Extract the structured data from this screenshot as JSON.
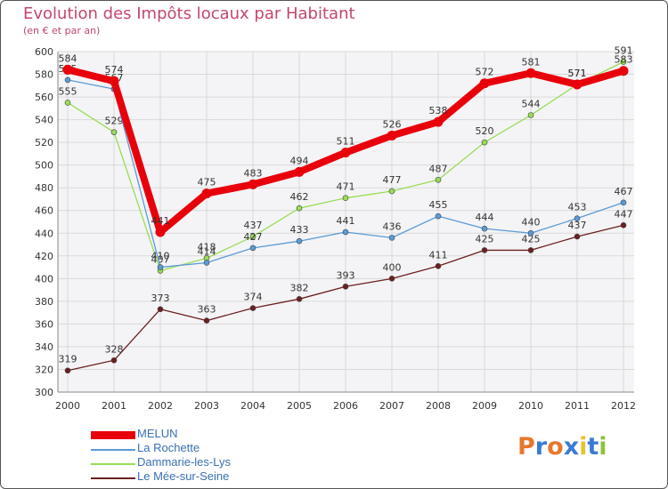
{
  "header": {
    "title": "Evolution des Impôts locaux par Habitant",
    "subtitle": "(en € et par an)"
  },
  "chart_data": {
    "type": "line",
    "title": "Evolution des Impôts locaux par Habitant",
    "subtitle": "(en € et par an)",
    "xlabel": "",
    "ylabel": "",
    "categories": [
      "2000",
      "2001",
      "2002",
      "2003",
      "2004",
      "2005",
      "2006",
      "2007",
      "2008",
      "2009",
      "2010",
      "2011",
      "2012"
    ],
    "ylim": [
      300,
      600
    ],
    "yticks": [
      300,
      320,
      340,
      360,
      380,
      400,
      420,
      440,
      460,
      480,
      500,
      520,
      540,
      560,
      580,
      600
    ],
    "grid": true,
    "legend_position": "bottom-left",
    "series": [
      {
        "name": "Le Mée-sur-Seine",
        "color": "#6b1f1f",
        "values": [
          319,
          328,
          373,
          363,
          374,
          382,
          393,
          400,
          411,
          425,
          425,
          437,
          447
        ]
      },
      {
        "name": "Dammarie-les-Lys",
        "color": "#99dd55",
        "values": [
          555,
          529,
          407,
          418,
          437,
          462,
          471,
          477,
          487,
          520,
          544,
          571,
          591
        ]
      },
      {
        "name": "La Rochette",
        "color": "#5b9bd5",
        "values": [
          575,
          567,
          410,
          414,
          427,
          433,
          441,
          436,
          455,
          444,
          440,
          453,
          467
        ]
      },
      {
        "name": "MELUN",
        "color": "#e8000b",
        "values": [
          584,
          574,
          441,
          475,
          483,
          494,
          511,
          526,
          538,
          572,
          581,
          571,
          583
        ]
      }
    ]
  },
  "legend": {
    "items": [
      {
        "label": "MELUN",
        "color": "#e8000b"
      },
      {
        "label": "La Rochette",
        "color": "#5b9bd5"
      },
      {
        "label": "Dammarie-les-Lys",
        "color": "#99dd55"
      },
      {
        "label": "Le Mée-sur-Seine",
        "color": "#6b1f1f"
      }
    ]
  },
  "logo": {
    "letters": [
      "P",
      "r",
      "o",
      "x",
      "i",
      "t",
      "i"
    ],
    "colors": [
      "#e8772e",
      "#3a7bd5",
      "#e8772e",
      "#3a7bd5",
      "#e8c32e",
      "#3a7bd5",
      "#8fc23a"
    ]
  }
}
